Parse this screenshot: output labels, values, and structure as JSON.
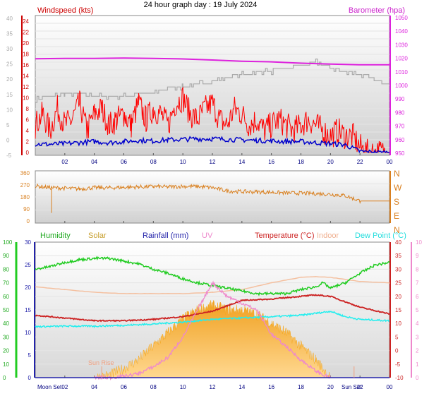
{
  "title": "24 hour graph day : 19 July 2024",
  "x_ticks": [
    "02",
    "04",
    "06",
    "08",
    "10",
    "12",
    "14",
    "16",
    "18",
    "20",
    "22",
    "00"
  ],
  "colors": {
    "wind_gust": "#ff0000",
    "wind_avg": "#0000cc",
    "barometer": "#dd22dd",
    "temp_history": "#aaaaaa",
    "wind_dir": "#d98020",
    "humidity": "#22cc22",
    "solar": "#f5b030",
    "rainfall": "#2222aa",
    "uv": "#ee88cc",
    "temperature": "#cc2222",
    "indoor": "#f4c0a0",
    "dew_point": "#22eeee"
  },
  "chart_data": [
    {
      "type": "line",
      "title": "Windspeed (kts)",
      "ylabel_right": "Barometer (hpa)",
      "x_range": [
        0,
        24
      ],
      "left_axis_outer": {
        "range": [
          -5,
          40
        ],
        "ticks": [
          "40",
          "35",
          "30",
          "25",
          "20",
          "15",
          "10",
          "5",
          "0",
          "-5"
        ]
      },
      "left_axis_inner": {
        "range": [
          0,
          25
        ],
        "ticks": [
          "24",
          "22",
          "20",
          "18",
          "16",
          "14",
          "12",
          "10",
          "8",
          "6",
          "4",
          "2",
          "0"
        ]
      },
      "right_axis": {
        "range": [
          945,
          1050
        ],
        "ticks": [
          "1050",
          "1040",
          "1030",
          "1020",
          "1010",
          "1000",
          "990",
          "980",
          "970",
          "960",
          "950"
        ]
      },
      "series": [
        {
          "name": "Barometer (hpa)",
          "axis": "right",
          "x": [
            0,
            2,
            4,
            6,
            8,
            10,
            12,
            14,
            16,
            18,
            20,
            22,
            24
          ],
          "values": [
            1017.5,
            1017.8,
            1017.8,
            1018,
            1017.8,
            1017.4,
            1016.6,
            1015.7,
            1015.2,
            1014.2,
            1013.5,
            1013,
            1013
          ]
        },
        {
          "axis": "outer",
          "x": [
            0,
            1,
            2,
            4,
            5,
            6,
            7,
            8,
            9,
            10,
            11,
            12,
            13,
            14,
            15,
            16,
            17,
            18,
            19,
            20,
            21,
            22,
            23,
            24
          ],
          "values": [
            13,
            14,
            15,
            14,
            14,
            14,
            15,
            15,
            17,
            17,
            18,
            19,
            20,
            21,
            22,
            22,
            23,
            24,
            25,
            23,
            22,
            21,
            19,
            18
          ]
        },
        {
          "axis": "inner",
          "x": [
            0,
            0.5,
            1,
            1.5,
            2,
            2.5,
            3,
            3.5,
            4,
            4.5,
            5,
            5.5,
            6,
            6.5,
            7,
            7.5,
            8,
            8.5,
            9,
            9.5,
            10,
            10.5,
            11,
            11.5,
            12,
            12.5,
            13,
            13.5,
            14,
            14.5,
            15,
            15.5,
            16,
            16.5,
            17,
            17.5,
            18,
            18.5,
            19,
            19.5,
            20,
            20.5,
            21,
            21.5,
            22,
            22.5,
            23,
            23.5,
            24
          ],
          "values": [
            5,
            7,
            4,
            8,
            5,
            6,
            9,
            4,
            7,
            8,
            5,
            6,
            7,
            5,
            9,
            6,
            8,
            7,
            5,
            9,
            10,
            7,
            6,
            8,
            9,
            6,
            5,
            8,
            7,
            5,
            6,
            4,
            5,
            6,
            5,
            4,
            5,
            6,
            5,
            4,
            3,
            4,
            3,
            3,
            1,
            0,
            0,
            0,
            0
          ]
        },
        {
          "axis": "inner",
          "x": [
            0,
            1,
            2,
            3,
            4,
            5,
            6,
            7,
            8,
            9,
            10,
            11,
            12,
            13,
            14,
            15,
            16,
            17,
            18,
            19,
            20,
            21,
            22,
            23,
            24
          ],
          "values": [
            1.5,
            1.5,
            1.6,
            1.8,
            2,
            1.8,
            2,
            2.2,
            2.1,
            2.3,
            2.4,
            2.5,
            2.5,
            2.4,
            2.3,
            2.2,
            2.1,
            2.0,
            2.0,
            1.8,
            1.6,
            1.4,
            0.2,
            0,
            0
          ]
        }
      ]
    },
    {
      "type": "scatter",
      "x_range": [
        0,
        24
      ],
      "left_axis": {
        "range": [
          0,
          360
        ],
        "ticks": [
          "360",
          "270",
          "180",
          "90",
          "0"
        ]
      },
      "right_labels": [
        "N",
        "W",
        "S",
        "E",
        "N"
      ],
      "x": [
        0,
        1,
        2,
        3,
        4,
        5,
        6,
        7,
        8,
        9,
        10,
        11,
        12,
        13,
        14,
        15,
        16,
        17,
        18,
        19,
        20,
        21,
        22,
        23,
        24
      ],
      "values": [
        262,
        250,
        245,
        240,
        250,
        248,
        252,
        255,
        258,
        255,
        260,
        258,
        250,
        225,
        220,
        218,
        215,
        210,
        208,
        205,
        200,
        190,
        150,
        150,
        150
      ]
    },
    {
      "type": "line",
      "x_range": [
        0,
        24
      ],
      "legend": [
        "Humidity",
        "Solar",
        "Rainfall (mm)",
        "UV",
        "Temperature (°C)",
        "Indoor",
        "Dew Point (°C)"
      ],
      "annotations": [
        "Sun Rise",
        "Moon Set",
        "Sun Set"
      ],
      "axes": {
        "humidity": {
          "range": [
            0,
            100
          ],
          "ticks": [
            "100",
            "90",
            "80",
            "70",
            "60",
            "50",
            "40",
            "30",
            "20",
            "10",
            "0"
          ]
        },
        "rainfall": {
          "range": [
            0,
            30
          ],
          "ticks": [
            "30",
            "25",
            "20",
            "15",
            "10",
            "5",
            "0"
          ]
        },
        "temperature": {
          "range": [
            -10,
            40
          ],
          "ticks": [
            "40",
            "35",
            "30",
            "25",
            "20",
            "15",
            "10",
            "5",
            "0",
            "-5",
            "-10"
          ]
        },
        "uv": {
          "range": [
            0,
            10
          ],
          "ticks": [
            "10",
            "9",
            "8",
            "7",
            "6",
            "5",
            "4",
            "3",
            "2",
            "1",
            "0"
          ]
        }
      },
      "series": [
        {
          "name": "Humidity",
          "axis": "humidity",
          "x": [
            0,
            1,
            2,
            3,
            4,
            5,
            6,
            7,
            8,
            9,
            10,
            11,
            12,
            13,
            14,
            15,
            16,
            17,
            18,
            19,
            19.5,
            20,
            21,
            22,
            23,
            24
          ],
          "values": [
            80,
            82,
            85,
            87,
            88,
            88,
            86,
            84,
            80,
            77,
            73,
            70,
            68,
            66,
            64,
            62,
            62,
            62,
            65,
            67,
            70,
            66,
            70,
            77,
            83,
            85
          ]
        },
        {
          "name": "Solar",
          "axis": "rainfall",
          "x": [
            4,
            5,
            6,
            7,
            8,
            9,
            10,
            11,
            12,
            13,
            14,
            15,
            16,
            17,
            18,
            19,
            20
          ],
          "values": [
            0,
            0.5,
            2,
            4,
            7,
            10,
            13,
            15,
            16,
            15,
            15,
            14,
            12,
            10,
            7,
            4,
            0
          ]
        },
        {
          "name": "UV",
          "axis": "uv",
          "x": [
            4,
            5,
            6,
            7,
            8,
            9,
            10,
            11,
            12,
            13,
            14,
            15,
            16,
            17,
            18,
            19,
            19.5,
            20
          ],
          "values": [
            0,
            0,
            0.1,
            0.3,
            0.8,
            1.5,
            3,
            5,
            7,
            6,
            5.5,
            5,
            3.2,
            2.3,
            1.3,
            0.5,
            0.2,
            0
          ]
        },
        {
          "name": "Indoor",
          "axis": "temperature",
          "x": [
            0,
            2,
            4,
            6,
            8,
            10,
            12,
            14,
            16,
            18,
            19,
            20,
            22,
            24
          ],
          "values": [
            23.5,
            22.5,
            21.5,
            21,
            21,
            21,
            21.5,
            22.5,
            25,
            27,
            27.3,
            27,
            25.5,
            25
          ]
        },
        {
          "name": "Temperature (°C)",
          "axis": "temperature",
          "x": [
            0,
            2,
            4,
            6,
            8,
            10,
            12,
            14,
            16,
            18,
            19,
            20,
            21,
            22,
            24
          ],
          "values": [
            13,
            12,
            11,
            11,
            11.5,
            12.5,
            14.5,
            18.5,
            19,
            20,
            20.5,
            20,
            18,
            16,
            13.5
          ]
        },
        {
          "name": "Dew Point (°C)",
          "axis": "temperature",
          "x": [
            0,
            2,
            4,
            6,
            8,
            10,
            12,
            14,
            16,
            18,
            20,
            21,
            22,
            24
          ],
          "values": [
            8.8,
            9,
            9,
            9.3,
            9.8,
            10.5,
            11.5,
            12,
            12.5,
            13,
            14.5,
            12.5,
            11.5,
            11
          ]
        },
        {
          "name": "Rainfall (mm)",
          "axis": "rainfall",
          "x": [
            0,
            24
          ],
          "values": [
            0,
            0
          ]
        }
      ]
    }
  ]
}
